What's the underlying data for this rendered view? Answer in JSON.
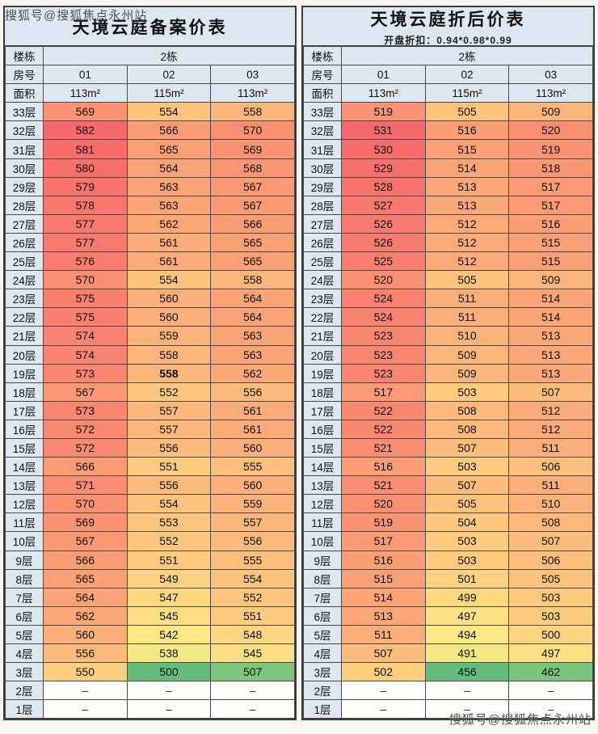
{
  "watermarks": {
    "top_left": "搜狐号@搜狐焦点永州站",
    "bottom_right": "搜狐号@搜狐焦点永州站"
  },
  "chart_data": [
    {
      "type": "heatmap",
      "title": "天境云庭备案价表",
      "subtitle": "",
      "building_label": "楼栋",
      "building": "2栋",
      "room_label": "房号",
      "rooms": [
        "01",
        "02",
        "03"
      ],
      "area_label": "面积",
      "areas": [
        "113m²",
        "115m²",
        "113m²"
      ],
      "empty_placeholder": "–",
      "colorscale": {
        "low": "#63BE7B",
        "mid": "#FFEB84",
        "high": "#F8696B"
      },
      "floors": [
        "33层",
        "32层",
        "31层",
        "30层",
        "29层",
        "28层",
        "27层",
        "26层",
        "25层",
        "24层",
        "23层",
        "22层",
        "21层",
        "20层",
        "19层",
        "18层",
        "17层",
        "16层",
        "15层",
        "14层",
        "13层",
        "12层",
        "11层",
        "10层",
        "9层",
        "8层",
        "7层",
        "6层",
        "5层",
        "4层",
        "3层",
        "2层",
        "1层"
      ],
      "values": [
        [
          569,
          554,
          558
        ],
        [
          582,
          566,
          570
        ],
        [
          581,
          565,
          569
        ],
        [
          580,
          564,
          568
        ],
        [
          579,
          563,
          567
        ],
        [
          578,
          563,
          567
        ],
        [
          577,
          562,
          566
        ],
        [
          577,
          561,
          565
        ],
        [
          576,
          561,
          565
        ],
        [
          570,
          554,
          558
        ],
        [
          575,
          560,
          564
        ],
        [
          575,
          560,
          564
        ],
        [
          574,
          559,
          563
        ],
        [
          574,
          558,
          563
        ],
        [
          573,
          558,
          562
        ],
        [
          567,
          552,
          556
        ],
        [
          573,
          557,
          561
        ],
        [
          572,
          557,
          561
        ],
        [
          572,
          556,
          560
        ],
        [
          566,
          551,
          555
        ],
        [
          571,
          556,
          560
        ],
        [
          570,
          554,
          559
        ],
        [
          569,
          553,
          557
        ],
        [
          567,
          552,
          556
        ],
        [
          566,
          551,
          555
        ],
        [
          565,
          549,
          554
        ],
        [
          564,
          547,
          552
        ],
        [
          562,
          545,
          551
        ],
        [
          560,
          542,
          548
        ],
        [
          556,
          538,
          545
        ],
        [
          550,
          500,
          507
        ],
        [
          null,
          null,
          null
        ],
        [
          null,
          null,
          null
        ]
      ],
      "bold_cells": [
        [
          14,
          1
        ]
      ]
    },
    {
      "type": "heatmap",
      "title": "天境云庭折后价表",
      "subtitle": "开盘折扣：0.94*0.98*0.99",
      "building_label": "楼栋",
      "building": "2栋",
      "room_label": "房号",
      "rooms": [
        "01",
        "02",
        "03"
      ],
      "area_label": "面积",
      "areas": [
        "113m²",
        "115m²",
        "113m²"
      ],
      "empty_placeholder": "–",
      "colorscale": {
        "low": "#63BE7B",
        "mid": "#FFEB84",
        "high": "#F8696B"
      },
      "floors": [
        "33层",
        "32层",
        "31层",
        "30层",
        "29层",
        "28层",
        "27层",
        "26层",
        "25层",
        "24层",
        "23层",
        "22层",
        "21层",
        "20层",
        "19层",
        "18层",
        "17层",
        "16层",
        "15层",
        "14层",
        "13层",
        "12层",
        "11层",
        "10层",
        "9层",
        "8层",
        "7层",
        "6层",
        "5层",
        "4层",
        "3层",
        "2层",
        "1层"
      ],
      "values": [
        [
          519,
          505,
          509
        ],
        [
          531,
          516,
          520
        ],
        [
          530,
          515,
          519
        ],
        [
          529,
          514,
          518
        ],
        [
          528,
          513,
          517
        ],
        [
          527,
          513,
          517
        ],
        [
          526,
          512,
          516
        ],
        [
          526,
          512,
          515
        ],
        [
          525,
          512,
          515
        ],
        [
          520,
          505,
          509
        ],
        [
          524,
          511,
          514
        ],
        [
          524,
          511,
          514
        ],
        [
          523,
          510,
          513
        ],
        [
          523,
          509,
          513
        ],
        [
          523,
          509,
          513
        ],
        [
          517,
          503,
          507
        ],
        [
          522,
          508,
          512
        ],
        [
          522,
          508,
          512
        ],
        [
          521,
          507,
          511
        ],
        [
          516,
          503,
          506
        ],
        [
          521,
          507,
          511
        ],
        [
          520,
          505,
          510
        ],
        [
          519,
          504,
          508
        ],
        [
          517,
          503,
          507
        ],
        [
          516,
          503,
          506
        ],
        [
          515,
          501,
          505
        ],
        [
          514,
          499,
          503
        ],
        [
          513,
          497,
          503
        ],
        [
          511,
          494,
          500
        ],
        [
          507,
          491,
          497
        ],
        [
          502,
          456,
          462
        ],
        [
          null,
          null,
          null
        ],
        [
          null,
          null,
          null
        ]
      ],
      "bold_cells": []
    }
  ]
}
